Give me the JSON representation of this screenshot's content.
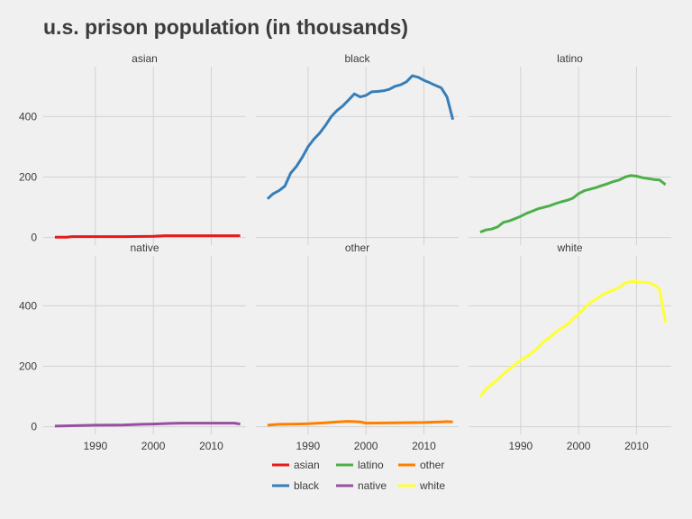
{
  "chart_data": {
    "type": "line",
    "title": "u.s. prison population (in thousands)",
    "xlabel": "",
    "ylabel": "",
    "xlim": [
      1981,
      2016
    ],
    "ylim": [
      -25,
      565
    ],
    "x_ticks": [
      1990,
      2000,
      2010
    ],
    "y_ticks": [
      0,
      200,
      400
    ],
    "facet_order": [
      "asian",
      "black",
      "latino",
      "native",
      "other",
      "white"
    ],
    "legend_position": "bottom",
    "legend_order": [
      "asian",
      "latino",
      "other",
      "black",
      "native",
      "white"
    ],
    "series": [
      {
        "name": "asian",
        "color": "#e41a1c",
        "x": [
          1983,
          1985,
          1986,
          1990,
          1995,
          2000,
          2002,
          2005,
          2010,
          2015
        ],
        "y": [
          1,
          1,
          3,
          3,
          3,
          4,
          6,
          6,
          6,
          6
        ]
      },
      {
        "name": "black",
        "color": "#377eb8",
        "x": [
          1983,
          1984,
          1985,
          1986,
          1987,
          1988,
          1989,
          1990,
          1991,
          1992,
          1993,
          1994,
          1995,
          1996,
          1997,
          1998,
          1999,
          2000,
          2001,
          2002,
          2003,
          2004,
          2005,
          2006,
          2007,
          2008,
          2009,
          2010,
          2011,
          2012,
          2013,
          2014,
          2015
        ],
        "y": [
          128,
          145,
          155,
          170,
          213,
          235,
          265,
          300,
          325,
          345,
          370,
          400,
          420,
          435,
          455,
          475,
          465,
          470,
          482,
          483,
          485,
          490,
          500,
          505,
          515,
          535,
          530,
          520,
          512,
          503,
          495,
          465,
          390
        ]
      },
      {
        "name": "latino",
        "color": "#4daf4a",
        "x": [
          1983,
          1984,
          1985,
          1986,
          1987,
          1988,
          1989,
          1990,
          1991,
          1992,
          1993,
          1994,
          1995,
          1996,
          1997,
          1998,
          1999,
          2000,
          2001,
          2002,
          2003,
          2004,
          2005,
          2006,
          2007,
          2008,
          2009,
          2010,
          2011,
          2012,
          2013,
          2014,
          2015
        ],
        "y": [
          18,
          25,
          28,
          35,
          50,
          55,
          62,
          70,
          80,
          87,
          95,
          100,
          105,
          112,
          118,
          123,
          130,
          145,
          155,
          160,
          165,
          172,
          178,
          185,
          190,
          200,
          205,
          203,
          198,
          195,
          192,
          190,
          175
        ]
      },
      {
        "name": "native",
        "color": "#984ea3",
        "x": [
          1983,
          1985,
          1990,
          1995,
          1998,
          2000,
          2003,
          2005,
          2010,
          2014,
          2015
        ],
        "y": [
          2,
          3,
          5,
          6,
          8,
          9,
          11,
          12,
          12,
          12,
          9
        ]
      },
      {
        "name": "other",
        "color": "#ff7f00",
        "x": [
          1983,
          1985,
          1988,
          1990,
          1993,
          1995,
          1997,
          1999,
          2000,
          2005,
          2010,
          2013,
          2014,
          2015
        ],
        "y": [
          5,
          8,
          9,
          10,
          13,
          16,
          18,
          16,
          12,
          13,
          14,
          16,
          17,
          16
        ]
      },
      {
        "name": "white",
        "color": "#ffff33",
        "x": [
          1983,
          1984,
          1985,
          1986,
          1987,
          1988,
          1989,
          1990,
          1991,
          1992,
          1993,
          1994,
          1995,
          1996,
          1997,
          1998,
          1999,
          2000,
          2001,
          2002,
          2003,
          2004,
          2005,
          2006,
          2007,
          2008,
          2009,
          2010,
          2011,
          2012,
          2013,
          2014,
          2015
        ],
        "y": [
          100,
          125,
          140,
          155,
          175,
          190,
          205,
          220,
          232,
          245,
          262,
          282,
          295,
          312,
          325,
          338,
          355,
          372,
          392,
          410,
          422,
          435,
          445,
          452,
          460,
          475,
          480,
          480,
          478,
          477,
          470,
          455,
          345
        ]
      }
    ]
  }
}
